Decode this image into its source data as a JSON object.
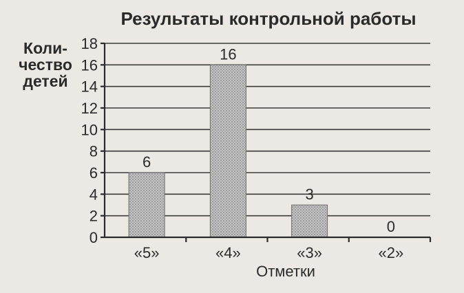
{
  "chart_data": {
    "type": "bar",
    "title": "Результаты контрольной работы",
    "ylabel_lines": [
      "Коли-",
      "чество",
      "детей"
    ],
    "xlabel": "Отметки",
    "categories": [
      "«5»",
      "«4»",
      "«3»",
      "«2»"
    ],
    "values": [
      6,
      16,
      3,
      0
    ],
    "ylim": [
      0,
      18
    ],
    "yticks": [
      0,
      2,
      4,
      6,
      8,
      10,
      12,
      14,
      16,
      18
    ],
    "grid": true,
    "legend": "none",
    "colors": {
      "bar": "#b8b8b8",
      "background": "#ece9e4"
    }
  }
}
